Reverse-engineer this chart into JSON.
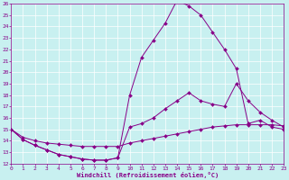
{
  "bg_color": "#c8f0f0",
  "line_color": "#880088",
  "xlabel": "Windchill (Refroidissement éolien,°C)",
  "xlim": [
    0,
    23
  ],
  "ylim": [
    12,
    26
  ],
  "yticks": [
    12,
    13,
    14,
    15,
    16,
    17,
    18,
    19,
    20,
    21,
    22,
    23,
    24,
    25,
    26
  ],
  "xticks": [
    0,
    1,
    2,
    3,
    4,
    5,
    6,
    7,
    8,
    9,
    10,
    11,
    12,
    13,
    14,
    15,
    16,
    17,
    18,
    19,
    20,
    21,
    22,
    23
  ],
  "series1_x": [
    0,
    1,
    2,
    3,
    4,
    5,
    6,
    7,
    8,
    9,
    10,
    11,
    12,
    13,
    14,
    15,
    16,
    17,
    18,
    19,
    20,
    21,
    22,
    23
  ],
  "series1_y": [
    15.0,
    14.1,
    13.6,
    13.2,
    12.8,
    12.6,
    12.4,
    12.3,
    12.3,
    12.5,
    18.0,
    21.3,
    22.8,
    24.3,
    26.3,
    25.8,
    25.0,
    23.5,
    22.0,
    20.3,
    15.5,
    15.8,
    15.2,
    15.0
  ],
  "series2_x": [
    0,
    1,
    2,
    3,
    4,
    5,
    6,
    7,
    8,
    9,
    10,
    11,
    12,
    13,
    14,
    15,
    16,
    17,
    18,
    19,
    20,
    21,
    22,
    23
  ],
  "series2_y": [
    15.0,
    14.1,
    13.6,
    13.2,
    12.8,
    12.6,
    12.4,
    12.3,
    12.3,
    12.5,
    15.2,
    15.5,
    16.0,
    16.8,
    17.5,
    18.2,
    17.5,
    17.2,
    17.0,
    19.0,
    17.5,
    16.5,
    15.8,
    15.2
  ],
  "series3_x": [
    0,
    1,
    2,
    3,
    4,
    5,
    6,
    7,
    8,
    9,
    10,
    11,
    12,
    13,
    14,
    15,
    16,
    17,
    18,
    19,
    20,
    21,
    22,
    23
  ],
  "series3_y": [
    15.0,
    14.3,
    14.0,
    13.8,
    13.7,
    13.6,
    13.5,
    13.5,
    13.5,
    13.5,
    13.8,
    14.0,
    14.2,
    14.4,
    14.6,
    14.8,
    15.0,
    15.2,
    15.3,
    15.4,
    15.4,
    15.4,
    15.4,
    15.3
  ]
}
